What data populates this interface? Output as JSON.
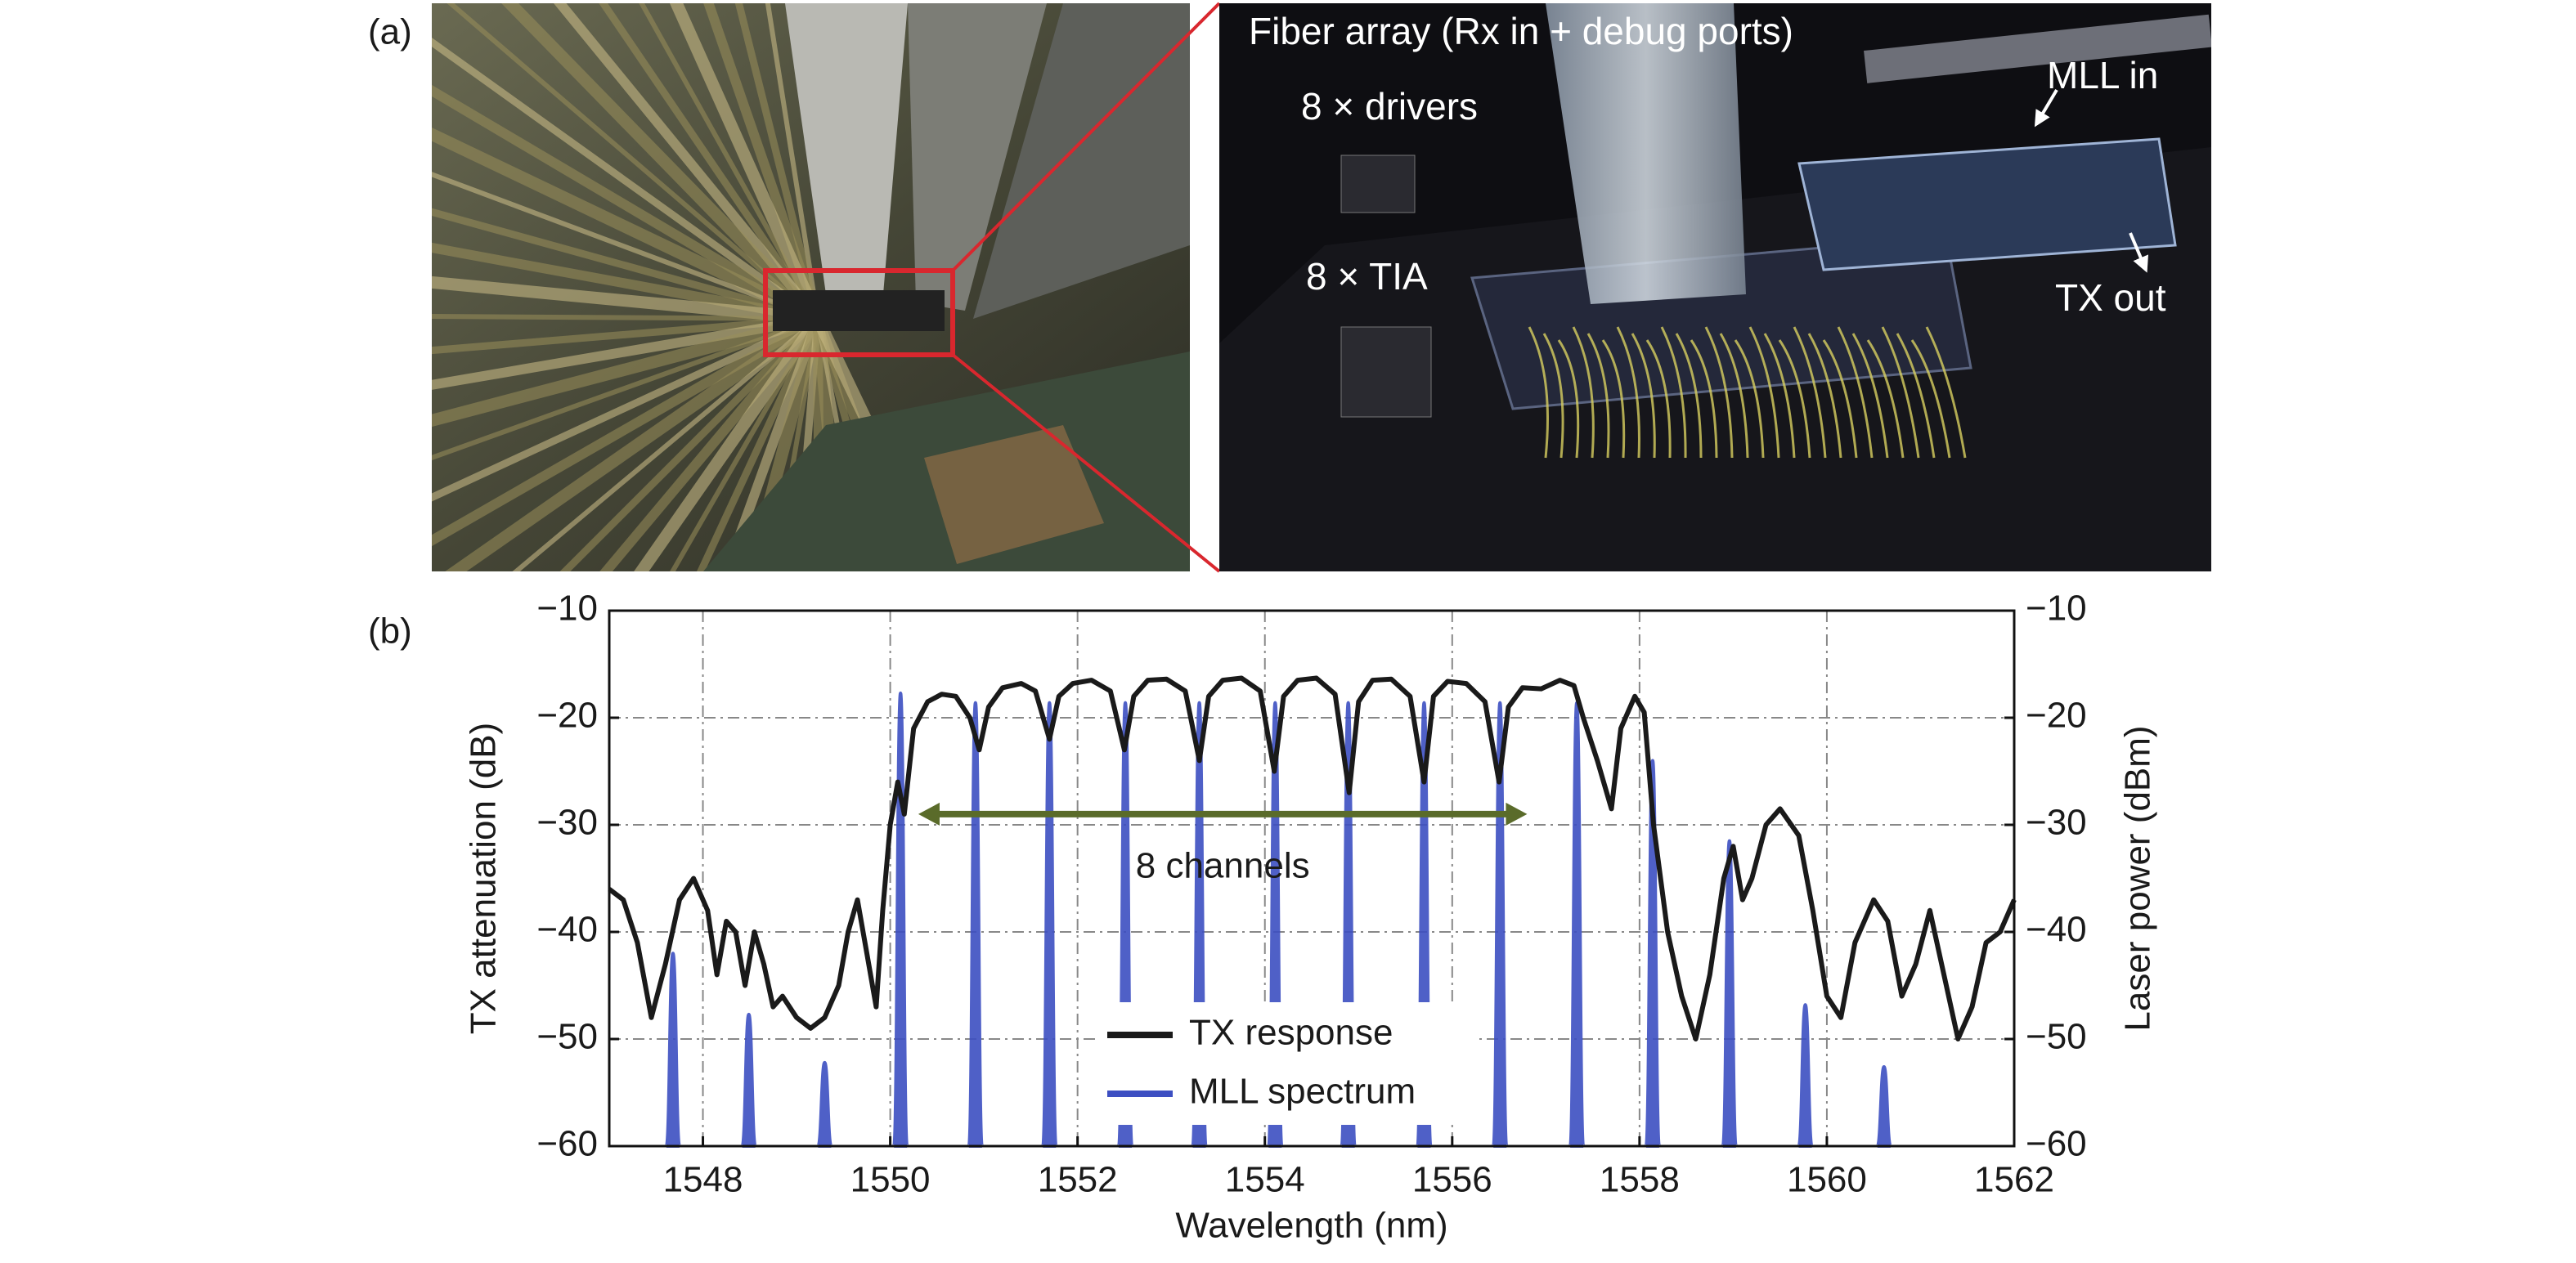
{
  "panel_a": {
    "label": "(a)",
    "annotations": [
      "Fiber array (Rx in + debug ports)",
      "8 × drivers",
      "8 × TIA",
      "MLL in",
      "TX out"
    ]
  },
  "chart_data": {
    "type": "line",
    "panel_label": "(b)",
    "x_label": "Wavelength (nm)",
    "y_label": "TX attenuation (dB)",
    "y2_label": "Laser power (dBm)",
    "xlim": [
      1547,
      1562
    ],
    "xticks": [
      1548,
      1550,
      1552,
      1554,
      1556,
      1558,
      1560,
      1562
    ],
    "ylim": [
      -60,
      -10
    ],
    "yticks": [
      {
        "value": -10,
        "label": "−10"
      },
      {
        "value": -20,
        "label": "−20"
      },
      {
        "value": -30,
        "label": "−30"
      },
      {
        "value": -40,
        "label": "−40"
      },
      {
        "value": -50,
        "label": "−50"
      },
      {
        "value": -60,
        "label": "−60"
      }
    ],
    "y2lim": [
      -60,
      -10
    ],
    "y2ticks": [
      {
        "value": -10,
        "label": "−10"
      },
      {
        "value": -20,
        "label": "−20"
      },
      {
        "value": -30,
        "label": "−30"
      },
      {
        "value": -40,
        "label": "−40"
      },
      {
        "value": -50,
        "label": "−50"
      },
      {
        "value": -60,
        "label": "−60"
      }
    ],
    "grid": true,
    "legend": "lower center",
    "series": [
      {
        "name": "TX response",
        "color": "#1a1a1a",
        "style": "line",
        "x": [
          1547.0,
          1547.15,
          1547.3,
          1547.45,
          1547.6,
          1547.75,
          1547.9,
          1548.05,
          1548.15,
          1548.25,
          1548.35,
          1548.45,
          1548.55,
          1548.65,
          1548.75,
          1548.85,
          1549.0,
          1549.15,
          1549.3,
          1549.45,
          1549.55,
          1549.65,
          1549.75,
          1549.85,
          1549.92,
          1550.0,
          1550.08,
          1550.15,
          1550.25,
          1550.4,
          1550.55,
          1550.7,
          1550.85,
          1550.95,
          1551.05,
          1551.2,
          1551.4,
          1551.55,
          1551.7,
          1551.8,
          1551.95,
          1552.15,
          1552.35,
          1552.5,
          1552.6,
          1552.75,
          1552.95,
          1553.15,
          1553.3,
          1553.4,
          1553.55,
          1553.75,
          1553.95,
          1554.1,
          1554.2,
          1554.35,
          1554.55,
          1554.75,
          1554.9,
          1555.0,
          1555.15,
          1555.35,
          1555.55,
          1555.7,
          1555.8,
          1555.95,
          1556.15,
          1556.35,
          1556.5,
          1556.6,
          1556.75,
          1556.95,
          1557.15,
          1557.3,
          1557.4,
          1557.55,
          1557.7,
          1557.8,
          1557.95,
          1558.05,
          1558.15,
          1558.3,
          1558.45,
          1558.6,
          1558.75,
          1558.9,
          1559.0,
          1559.1,
          1559.2,
          1559.35,
          1559.5,
          1559.7,
          1559.85,
          1560.0,
          1560.15,
          1560.3,
          1560.5,
          1560.65,
          1560.8,
          1560.95,
          1561.1,
          1561.25,
          1561.4,
          1561.55,
          1561.7,
          1561.85,
          1562.0
        ],
        "values": [
          -36,
          -37,
          -41,
          -48,
          -43,
          -37,
          -35,
          -38,
          -44,
          -39,
          -40,
          -45,
          -40,
          -43,
          -47,
          -46,
          -48,
          -49,
          -48,
          -45,
          -40,
          -37,
          -42,
          -47,
          -38,
          -30,
          -26,
          -29,
          -21,
          -18.5,
          -17.8,
          -18,
          -20,
          -23,
          -19,
          -17.2,
          -16.8,
          -17.5,
          -22,
          -18,
          -16.8,
          -16.5,
          -17.5,
          -23,
          -18,
          -16.5,
          -16.4,
          -17.5,
          -24,
          -18,
          -16.5,
          -16.3,
          -17.5,
          -25,
          -18,
          -16.5,
          -16.3,
          -17.8,
          -27,
          -18.5,
          -16.5,
          -16.4,
          -18,
          -26,
          -18,
          -16.6,
          -16.8,
          -18.5,
          -26,
          -19,
          -17.2,
          -17.3,
          -16.5,
          -17,
          -20,
          -24,
          -28.5,
          -21,
          -18,
          -19.5,
          -30,
          -40,
          -46,
          -50,
          -44,
          -35,
          -32,
          -37,
          -35,
          -30,
          -28.5,
          -31,
          -38,
          -46,
          -48,
          -41,
          -37,
          -39,
          -46,
          -43,
          -38,
          -44,
          -50,
          -47,
          -41,
          -40,
          -37
        ]
      },
      {
        "name": "MLL spectrum",
        "color": "#3d4fc2",
        "style": "peak",
        "axis": "y2",
        "x": [
          1547.68,
          1548.49,
          1549.3,
          1550.11,
          1550.91,
          1551.7,
          1552.51,
          1553.3,
          1554.11,
          1554.89,
          1555.7,
          1556.51,
          1557.33,
          1558.14,
          1558.96,
          1559.77,
          1560.61
        ],
        "values": [
          -42,
          -47.7,
          -52.2,
          -17.7,
          -18.6,
          -18.6,
          -18.6,
          -18.6,
          -18.6,
          -18.6,
          -18.6,
          -18.6,
          -18.6,
          -24,
          -31.5,
          -46.8,
          -52.6
        ]
      }
    ],
    "annotation": {
      "text": "8 channels",
      "x": [
        1550.3,
        1556.8
      ],
      "y": -29,
      "color": "#5a6b2a"
    }
  }
}
